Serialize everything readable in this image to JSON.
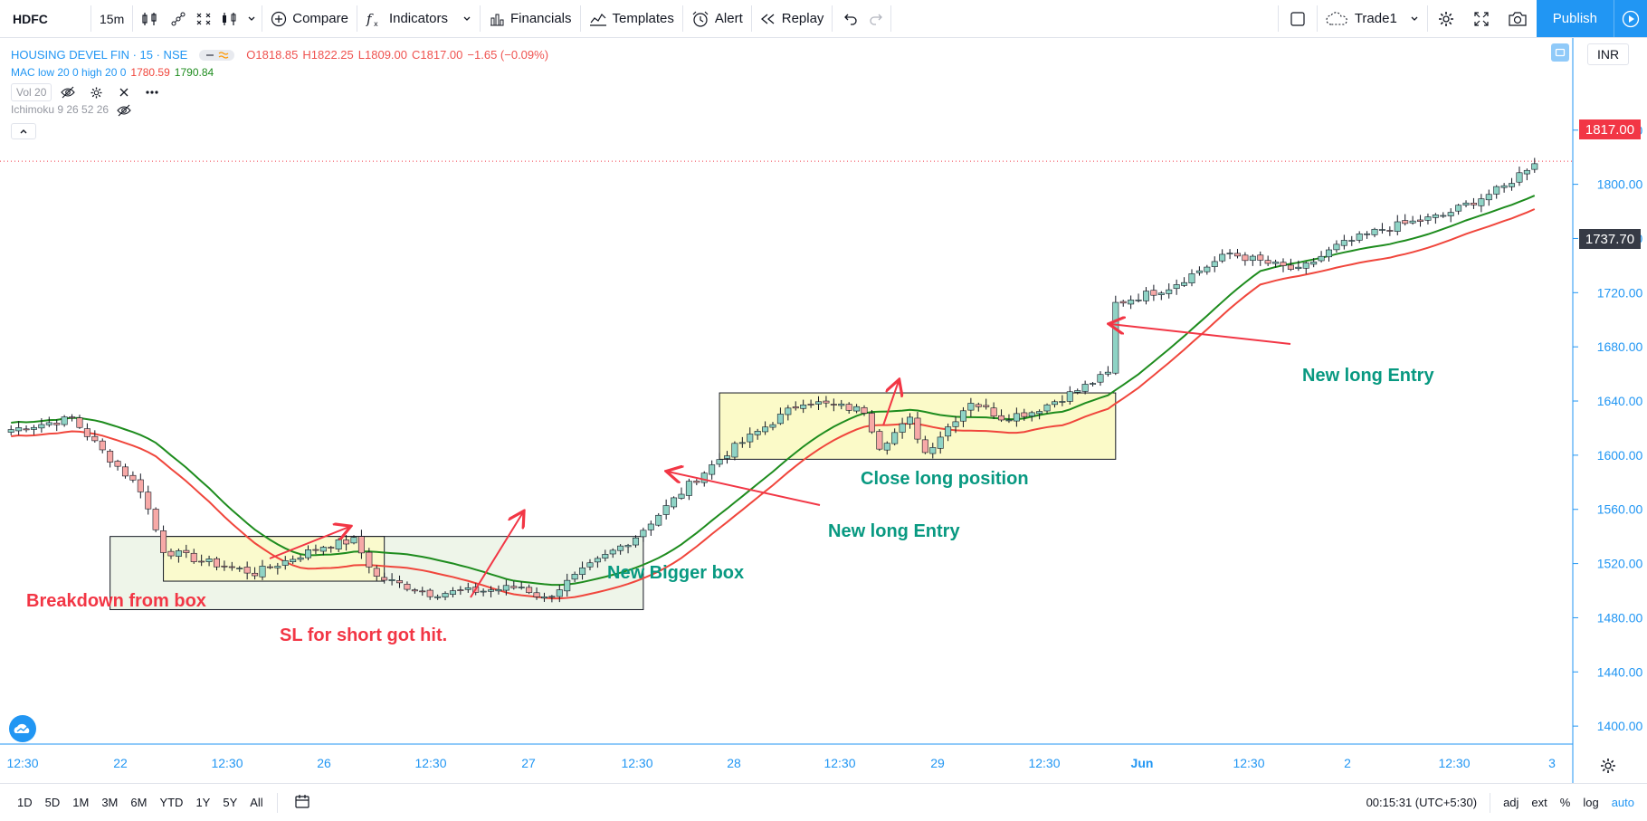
{
  "toolbar": {
    "symbol": "HDFC",
    "interval": "15m",
    "compare": "Compare",
    "indicators": "Indicators",
    "financials": "Financials",
    "templates": "Templates",
    "alert": "Alert",
    "replay": "Replay",
    "layout_name": "Trade1",
    "publish": "Publish"
  },
  "legend": {
    "title": "HOUSING DEVEL FIN · 15 · NSE",
    "open": "O1818.85",
    "high": "H1822.25",
    "low": "L1809.00",
    "close": "C1817.00",
    "change": "−1.65 (−0.09%)",
    "mac_name": "MAC low 20 0 high 20 0",
    "mac_low": "1780.59",
    "mac_high": "1790.84",
    "vol": "Vol 20",
    "ichimoku": "Ichimoku 9 26 52 26"
  },
  "currency": "INR",
  "price_labels": {
    "last": "1817.00",
    "crosshair": "1737.70"
  },
  "colors": {
    "up": "#26a69a",
    "down": "#ef5350",
    "accent": "#2196f3",
    "mac_high": "#1e8c1e",
    "mac_low": "#f0463c",
    "box_fill": "#fbfac8",
    "bigbox_fill": "#eef5e9"
  },
  "annotations": {
    "breakdown": "Breakdown from box",
    "sl_hit": "SL for short got hit.",
    "bigger_box": "New Bigger box",
    "long_entry_1": "New long Entry",
    "close_long": "Close long position",
    "long_entry_2": "New long Entry"
  },
  "chart_data": {
    "type": "candlestick",
    "y_ticks": [
      1840,
      1800,
      1760,
      1720,
      1680,
      1640,
      1600,
      1560,
      1520,
      1480,
      1440,
      1400
    ],
    "ylim": [
      1358,
      1908
    ],
    "x_labels": [
      "12:30",
      "22",
      "12:30",
      "26",
      "12:30",
      "27",
      "12:30",
      "28",
      "12:30",
      "29",
      "12:30",
      "Jun",
      "12:30",
      "2",
      "12:30",
      "3"
    ],
    "boxes": [
      {
        "name": "small-box",
        "start_bar": 20,
        "end_bar": 49,
        "low": 1507,
        "high": 1540
      },
      {
        "name": "bigger-box",
        "start_bar": 13,
        "end_bar": 83,
        "low": 1486,
        "high": 1540
      },
      {
        "name": "second-box",
        "start_bar": 93,
        "end_bar": 145,
        "low": 1597,
        "high": 1646
      }
    ],
    "series": [
      {
        "name": "MAC low 20 0",
        "color": "#f0463c"
      },
      {
        "name": "MAC high 20 0",
        "color": "#1e8c1e"
      }
    ],
    "close_path": [
      [
        0,
        1619
      ],
      [
        8,
        1627
      ],
      [
        12,
        1603
      ],
      [
        17,
        1575
      ],
      [
        20,
        1530
      ],
      [
        25,
        1522
      ],
      [
        32,
        1513
      ],
      [
        41,
        1533
      ],
      [
        45,
        1537
      ],
      [
        48,
        1510
      ],
      [
        55,
        1498
      ],
      [
        62,
        1500
      ],
      [
        67,
        1503
      ],
      [
        70,
        1494
      ],
      [
        76,
        1518
      ],
      [
        82,
        1540
      ],
      [
        89,
        1578
      ],
      [
        94,
        1602
      ],
      [
        104,
        1640
      ],
      [
        112,
        1633
      ],
      [
        114,
        1607
      ],
      [
        118,
        1626
      ],
      [
        120,
        1602
      ],
      [
        126,
        1640
      ],
      [
        130,
        1628
      ],
      [
        134,
        1632
      ],
      [
        140,
        1648
      ],
      [
        144,
        1660
      ],
      [
        145,
        1712
      ],
      [
        152,
        1724
      ],
      [
        160,
        1749
      ],
      [
        164,
        1743
      ],
      [
        169,
        1736
      ],
      [
        174,
        1754
      ],
      [
        180,
        1767
      ],
      [
        188,
        1777
      ],
      [
        196,
        1798
      ],
      [
        200,
        1817
      ]
    ]
  }
}
